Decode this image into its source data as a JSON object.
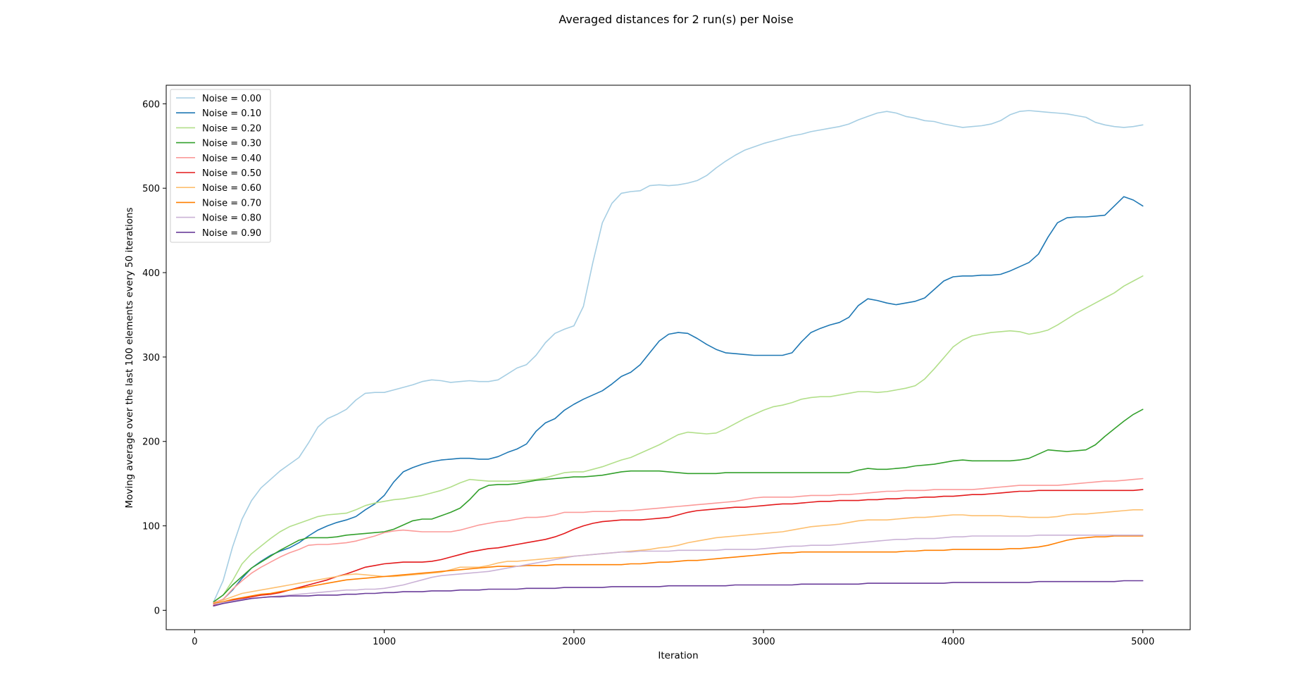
{
  "chart_data": {
    "type": "line",
    "title": "Averaged distances for 2 run(s) per Noise",
    "xlabel": "Iteration",
    "ylabel": "Moving average over the last 100 elements every 50 iterations",
    "xlim": [
      -150,
      5250
    ],
    "ylim": [
      -23,
      622
    ],
    "xticks": [
      0,
      1000,
      2000,
      3000,
      4000,
      5000
    ],
    "yticks": [
      0,
      100,
      200,
      300,
      400,
      500,
      600
    ],
    "grid": false,
    "legend_position": "upper-left",
    "x": [
      100,
      150,
      200,
      250,
      300,
      350,
      400,
      450,
      500,
      550,
      600,
      650,
      700,
      750,
      800,
      850,
      900,
      950,
      1000,
      1050,
      1100,
      1150,
      1200,
      1250,
      1300,
      1350,
      1400,
      1450,
      1500,
      1550,
      1600,
      1650,
      1700,
      1750,
      1800,
      1850,
      1900,
      1950,
      2000,
      2050,
      2100,
      2150,
      2200,
      2250,
      2300,
      2350,
      2400,
      2450,
      2500,
      2550,
      2600,
      2650,
      2700,
      2750,
      2800,
      2850,
      2900,
      2950,
      3000,
      3050,
      3100,
      3150,
      3200,
      3250,
      3300,
      3350,
      3400,
      3450,
      3500,
      3550,
      3600,
      3650,
      3700,
      3750,
      3800,
      3850,
      3900,
      3950,
      4000,
      4050,
      4100,
      4150,
      4200,
      4250,
      4300,
      4350,
      4400,
      4450,
      4500,
      4550,
      4600,
      4650,
      4700,
      4750,
      4800,
      4850,
      4900,
      4950,
      5000
    ],
    "series": [
      {
        "name": "Noise = 0.00",
        "color": "#a6cee3",
        "values": [
          10,
          35,
          75,
          108,
          130,
          145,
          155,
          165,
          173,
          181,
          198,
          217,
          227,
          232,
          238,
          249,
          257,
          258,
          258,
          261,
          264,
          267,
          271,
          273,
          272,
          270,
          271,
          272,
          271,
          271,
          273,
          280,
          287,
          291,
          302,
          317,
          328,
          333,
          337,
          360,
          412,
          459,
          482,
          494,
          496,
          497,
          503,
          504,
          503,
          504,
          506,
          509,
          515,
          524,
          532,
          539,
          545,
          549,
          553,
          556,
          559,
          562,
          564,
          567,
          569,
          571,
          573,
          576,
          581,
          585,
          589,
          591,
          589,
          585,
          583,
          580,
          579,
          576,
          574,
          572,
          573,
          574,
          576,
          580,
          587,
          591,
          592,
          591,
          590,
          589,
          588,
          586,
          584,
          578,
          575,
          573,
          572,
          573,
          575
        ]
      },
      {
        "name": "Noise = 0.10",
        "color": "#1f78b4",
        "values": [
          8,
          13,
          24,
          38,
          50,
          58,
          65,
          70,
          74,
          80,
          88,
          95,
          100,
          104,
          107,
          111,
          119,
          126,
          136,
          152,
          164,
          169,
          173,
          176,
          178,
          179,
          180,
          180,
          179,
          179,
          182,
          187,
          191,
          197,
          212,
          222,
          227,
          237,
          244,
          250,
          255,
          260,
          268,
          277,
          282,
          291,
          305,
          319,
          327,
          329,
          328,
          322,
          315,
          309,
          305,
          304,
          303,
          302,
          302,
          302,
          302,
          305,
          318,
          329,
          334,
          338,
          341,
          347,
          361,
          369,
          367,
          364,
          362,
          364,
          366,
          370,
          380,
          390,
          395,
          396,
          396,
          397,
          397,
          398,
          402,
          407,
          412,
          422,
          442,
          459,
          465,
          466,
          466,
          467,
          468,
          479,
          490,
          486,
          479
        ]
      },
      {
        "name": "Noise = 0.20",
        "color": "#b2df8a",
        "values": [
          10,
          18,
          35,
          55,
          67,
          76,
          85,
          93,
          99,
          103,
          107,
          111,
          113,
          114,
          115,
          119,
          124,
          127,
          129,
          131,
          132,
          134,
          136,
          139,
          142,
          146,
          151,
          155,
          154,
          153,
          153,
          153,
          153,
          154,
          155,
          157,
          160,
          163,
          164,
          164,
          167,
          170,
          174,
          178,
          181,
          186,
          191,
          196,
          202,
          208,
          211,
          210,
          209,
          210,
          215,
          221,
          227,
          232,
          237,
          241,
          243,
          246,
          250,
          252,
          253,
          253,
          255,
          257,
          259,
          259,
          258,
          259,
          261,
          263,
          266,
          274,
          286,
          299,
          312,
          320,
          325,
          327,
          329,
          330,
          331,
          330,
          327,
          329,
          332,
          338,
          345,
          352,
          358,
          364,
          370,
          376,
          384,
          390,
          396
        ]
      },
      {
        "name": "Noise = 0.30",
        "color": "#33a02c",
        "values": [
          10,
          18,
          30,
          40,
          50,
          57,
          64,
          71,
          77,
          83,
          86,
          86,
          86,
          87,
          89,
          90,
          91,
          92,
          93,
          96,
          101,
          106,
          108,
          108,
          112,
          116,
          121,
          131,
          143,
          148,
          149,
          149,
          150,
          152,
          154,
          155,
          156,
          157,
          158,
          158,
          159,
          160,
          162,
          164,
          165,
          165,
          165,
          165,
          164,
          163,
          162,
          162,
          162,
          162,
          163,
          163,
          163,
          163,
          163,
          163,
          163,
          163,
          163,
          163,
          163,
          163,
          163,
          163,
          166,
          168,
          167,
          167,
          168,
          169,
          171,
          172,
          173,
          175,
          177,
          178,
          177,
          177,
          177,
          177,
          177,
          178,
          180,
          185,
          190,
          189,
          188,
          189,
          190,
          196,
          206,
          215,
          224,
          232,
          238
        ]
      },
      {
        "name": "Noise = 0.40",
        "color": "#fb9a99",
        "values": [
          9,
          13,
          25,
          35,
          44,
          51,
          57,
          63,
          68,
          72,
          77,
          78,
          78,
          79,
          80,
          82,
          85,
          88,
          92,
          94,
          95,
          94,
          93,
          93,
          93,
          93,
          95,
          98,
          101,
          103,
          105,
          106,
          108,
          110,
          110,
          111,
          113,
          116,
          116,
          116,
          117,
          117,
          117,
          118,
          118,
          119,
          120,
          121,
          122,
          123,
          124,
          125,
          126,
          127,
          128,
          129,
          131,
          133,
          134,
          134,
          134,
          134,
          135,
          136,
          136,
          136,
          137,
          137,
          138,
          139,
          140,
          141,
          141,
          142,
          142,
          142,
          143,
          143,
          143,
          143,
          143,
          144,
          145,
          146,
          147,
          148,
          148,
          148,
          148,
          148,
          149,
          150,
          151,
          152,
          153,
          153,
          154,
          155,
          156
        ]
      },
      {
        "name": "Noise = 0.50",
        "color": "#e31a1c",
        "values": [
          6,
          10,
          12,
          14,
          16,
          18,
          19,
          21,
          24,
          27,
          30,
          33,
          36,
          40,
          43,
          47,
          51,
          53,
          55,
          56,
          57,
          57,
          57,
          58,
          60,
          63,
          66,
          69,
          71,
          73,
          74,
          76,
          78,
          80,
          82,
          84,
          87,
          91,
          96,
          100,
          103,
          105,
          106,
          107,
          107,
          107,
          108,
          109,
          110,
          113,
          116,
          118,
          119,
          120,
          121,
          122,
          122,
          123,
          124,
          125,
          126,
          126,
          127,
          128,
          129,
          129,
          130,
          130,
          130,
          131,
          131,
          132,
          132,
          133,
          133,
          134,
          134,
          135,
          135,
          136,
          137,
          137,
          138,
          139,
          140,
          141,
          141,
          142,
          142,
          142,
          142,
          142,
          142,
          142,
          142,
          142,
          142,
          142,
          143
        ]
      },
      {
        "name": "Noise = 0.60",
        "color": "#fdbf6f",
        "values": [
          8,
          12,
          16,
          20,
          22,
          24,
          26,
          28,
          30,
          32,
          34,
          36,
          38,
          40,
          42,
          43,
          42,
          41,
          40,
          40,
          41,
          42,
          43,
          44,
          45,
          48,
          51,
          51,
          51,
          53,
          56,
          58,
          58,
          59,
          60,
          61,
          62,
          63,
          64,
          65,
          66,
          67,
          68,
          69,
          70,
          71,
          72,
          74,
          75,
          77,
          80,
          82,
          84,
          86,
          87,
          88,
          89,
          90,
          91,
          92,
          93,
          95,
          97,
          99,
          100,
          101,
          102,
          104,
          106,
          107,
          107,
          107,
          108,
          109,
          110,
          110,
          111,
          112,
          113,
          113,
          112,
          112,
          112,
          112,
          111,
          111,
          110,
          110,
          110,
          111,
          113,
          114,
          114,
          115,
          116,
          117,
          118,
          119,
          119
        ]
      },
      {
        "name": "Noise = 0.70",
        "color": "#ff7f00",
        "values": [
          8,
          10,
          13,
          15,
          17,
          19,
          20,
          22,
          24,
          26,
          28,
          30,
          32,
          34,
          36,
          37,
          38,
          39,
          40,
          41,
          42,
          43,
          44,
          45,
          46,
          47,
          48,
          49,
          50,
          51,
          52,
          52,
          52,
          53,
          53,
          53,
          54,
          54,
          54,
          54,
          54,
          54,
          54,
          54,
          55,
          55,
          56,
          57,
          57,
          58,
          59,
          59,
          60,
          61,
          62,
          63,
          64,
          65,
          66,
          67,
          68,
          68,
          69,
          69,
          69,
          69,
          69,
          69,
          69,
          69,
          69,
          69,
          69,
          70,
          70,
          71,
          71,
          71,
          72,
          72,
          72,
          72,
          72,
          72,
          73,
          73,
          74,
          75,
          77,
          80,
          83,
          85,
          86,
          87,
          87,
          88,
          88,
          88,
          88
        ]
      },
      {
        "name": "Noise = 0.80",
        "color": "#cab2d6",
        "values": [
          7,
          9,
          11,
          13,
          14,
          15,
          16,
          17,
          18,
          19,
          20,
          21,
          22,
          23,
          24,
          24,
          25,
          25,
          26,
          28,
          30,
          33,
          36,
          39,
          41,
          42,
          43,
          44,
          45,
          46,
          48,
          50,
          52,
          54,
          56,
          58,
          60,
          62,
          64,
          65,
          66,
          67,
          68,
          69,
          69,
          70,
          70,
          70,
          70,
          71,
          71,
          71,
          71,
          71,
          72,
          72,
          72,
          72,
          73,
          74,
          75,
          76,
          76,
          77,
          77,
          77,
          78,
          79,
          80,
          81,
          82,
          83,
          84,
          84,
          85,
          85,
          85,
          86,
          87,
          87,
          88,
          88,
          88,
          88,
          88,
          88,
          88,
          89,
          89,
          89,
          89,
          89,
          89,
          89,
          89,
          89,
          89,
          89,
          89
        ]
      },
      {
        "name": "Noise = 0.90",
        "color": "#6a3d9a",
        "values": [
          5,
          8,
          10,
          12,
          14,
          15,
          16,
          16,
          17,
          17,
          17,
          18,
          18,
          18,
          19,
          19,
          20,
          20,
          21,
          21,
          22,
          22,
          22,
          23,
          23,
          23,
          24,
          24,
          24,
          25,
          25,
          25,
          25,
          26,
          26,
          26,
          26,
          27,
          27,
          27,
          27,
          27,
          28,
          28,
          28,
          28,
          28,
          28,
          29,
          29,
          29,
          29,
          29,
          29,
          29,
          30,
          30,
          30,
          30,
          30,
          30,
          30,
          31,
          31,
          31,
          31,
          31,
          31,
          31,
          32,
          32,
          32,
          32,
          32,
          32,
          32,
          32,
          32,
          33,
          33,
          33,
          33,
          33,
          33,
          33,
          33,
          33,
          34,
          34,
          34,
          34,
          34,
          34,
          34,
          34,
          34,
          35,
          35,
          35
        ]
      }
    ]
  }
}
